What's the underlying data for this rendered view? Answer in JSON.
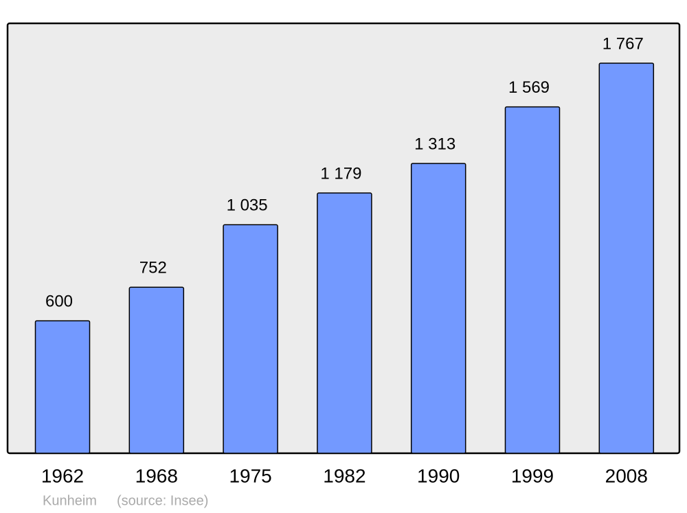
{
  "chart_data": {
    "type": "bar",
    "title": "Kunheim",
    "source": "(source: Insee)",
    "categories": [
      "1962",
      "1968",
      "1975",
      "1982",
      "1990",
      "1999",
      "2008"
    ],
    "values": [
      600,
      752,
      1035,
      1179,
      1313,
      1569,
      1767
    ],
    "value_labels": [
      "600",
      "752",
      "1 035",
      "1 179",
      "1 313",
      "1 569",
      "1 767"
    ],
    "color": "#7399ff"
  }
}
